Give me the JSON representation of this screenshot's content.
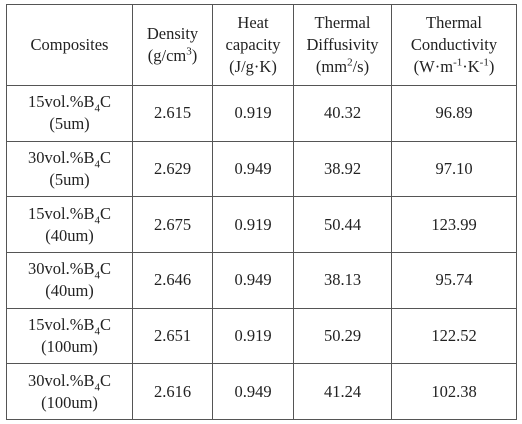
{
  "headers": [
    {
      "lines": [
        "Composites"
      ]
    },
    {
      "lines": [
        "Density",
        "(g/cm",
        "3",
        ")"
      ]
    },
    {
      "lines": [
        "Heat",
        "capacity",
        "(J/g·K)"
      ]
    },
    {
      "lines": [
        "Thermal",
        "Diffusivity",
        "(mm",
        "2",
        "/s)"
      ]
    },
    {
      "lines": [
        "Thermal",
        "Conductivity",
        "(W·m",
        "-1",
        "·K",
        "-1",
        ")"
      ]
    }
  ],
  "rows": [
    {
      "comp_prefix": "15vol.%B",
      "comp_sub": "4",
      "comp_suffix": "C",
      "size": "(5um)",
      "density": "2.615",
      "heat": "0.919",
      "diffusivity": "40.32",
      "conductivity": "96.89"
    },
    {
      "comp_prefix": "30vol.%B",
      "comp_sub": "4",
      "comp_suffix": "C",
      "size": "(5um)",
      "density": "2.629",
      "heat": "0.949",
      "diffusivity": "38.92",
      "conductivity": "97.10"
    },
    {
      "comp_prefix": "15vol.%B",
      "comp_sub": "4",
      "comp_suffix": "C",
      "size": "(40um)",
      "density": "2.675",
      "heat": "0.919",
      "diffusivity": "50.44",
      "conductivity": "123.99"
    },
    {
      "comp_prefix": "30vol.%B",
      "comp_sub": "4",
      "comp_suffix": "C",
      "size": "(40um)",
      "density": "2.646",
      "heat": "0.949",
      "diffusivity": "38.13",
      "conductivity": "95.74"
    },
    {
      "comp_prefix": "15vol.%B",
      "comp_sub": "4",
      "comp_suffix": "C",
      "size": "(100um)",
      "density": "2.651",
      "heat": "0.919",
      "diffusivity": "50.29",
      "conductivity": "122.52"
    },
    {
      "comp_prefix": "30vol.%B",
      "comp_sub": "4",
      "comp_suffix": "C",
      "size": "(100um)",
      "density": "2.616",
      "heat": "0.949",
      "diffusivity": "41.24",
      "conductivity": "102.38"
    }
  ]
}
